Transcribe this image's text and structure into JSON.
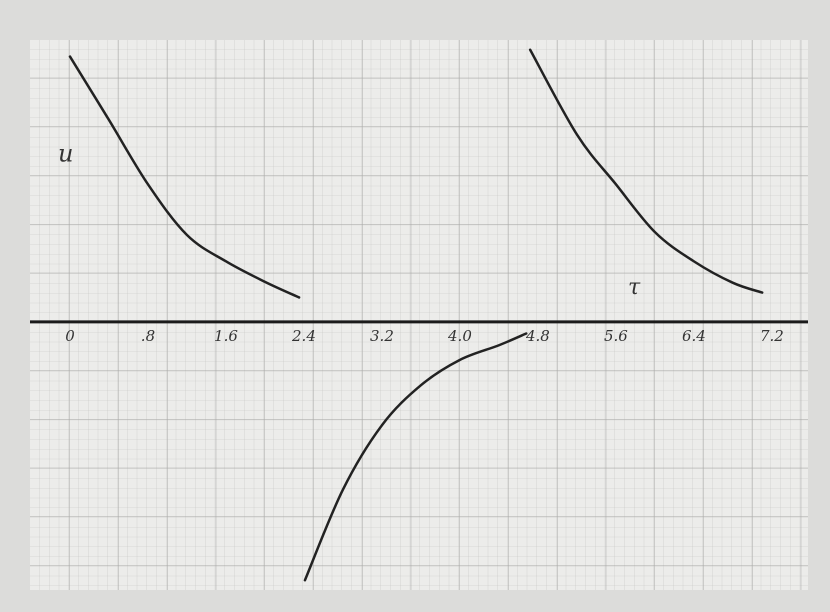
{
  "chart_data": {
    "type": "line",
    "x_label": "τ",
    "y_label": "u",
    "x": [
      0,
      0.4,
      0.8,
      1.2,
      1.6,
      2.0,
      2.35,
      null,
      2.41,
      2.8,
      3.2,
      3.6,
      4.0,
      4.4,
      4.68,
      null,
      4.72,
      5.2,
      5.6,
      6.0,
      6.4,
      6.8,
      7.1
    ],
    "series": [
      {
        "color": "#222222",
        "values": [
          2.72,
          2.07,
          1.41,
          0.89,
          0.62,
          0.41,
          0.25,
          null,
          -2.65,
          -1.72,
          -1.06,
          -0.65,
          -0.39,
          -0.24,
          -0.12,
          null,
          2.79,
          1.92,
          1.41,
          0.92,
          0.62,
          0.4,
          0.3
        ]
      }
    ],
    "xlim": [
      -0.41,
      7.57
    ],
    "ylim": [
      -2.75,
      2.89
    ],
    "xticks": [
      0,
      {
        "value": 0.8,
        "label": ".8"
      },
      1.6,
      2.4,
      3.2,
      {
        "value": 4,
        "label": "4.0"
      },
      4.8,
      5.6,
      6.4,
      7.2
    ],
    "grid": true
  }
}
